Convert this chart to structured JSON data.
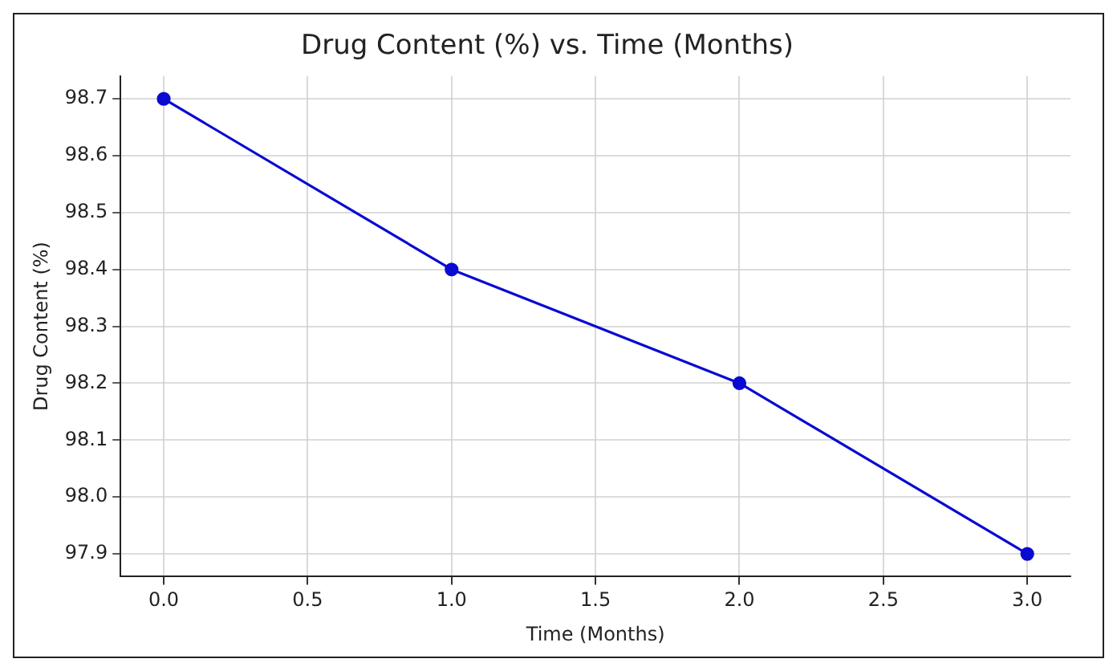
{
  "chart_data": {
    "type": "line",
    "title": "Drug Content (%) vs. Time (Months)",
    "xlabel": "Time (Months)",
    "ylabel": "Drug Content (%)",
    "x": [
      0,
      1,
      2,
      3
    ],
    "series": [
      {
        "color": "#0a0ad2",
        "values": [
          98.7,
          98.4,
          98.2,
          97.9
        ]
      }
    ],
    "xlim": [
      -0.15,
      3.15
    ],
    "xticks": [
      {
        "value": 0,
        "label": "0.0"
      },
      {
        "value": 0.5,
        "label": "0.5"
      },
      {
        "value": 1,
        "label": "1.0"
      },
      {
        "value": 1.5,
        "label": "1.5"
      },
      {
        "value": 2,
        "label": "2.0"
      },
      {
        "value": 2.5,
        "label": "2.5"
      },
      {
        "value": 3,
        "label": "3.0"
      }
    ],
    "ylim": [
      97.86,
      98.74
    ],
    "yticks": [
      {
        "value": 97.9,
        "label": "97.9"
      },
      {
        "value": 98,
        "label": "98.0"
      },
      {
        "value": 98.1,
        "label": "98.1"
      },
      {
        "value": 98.2,
        "label": "98.2"
      },
      {
        "value": 98.3,
        "label": "98.3"
      },
      {
        "value": 98.4,
        "label": "98.4"
      },
      {
        "value": 98.5,
        "label": "98.5"
      },
      {
        "value": 98.6,
        "label": "98.6"
      },
      {
        "value": 98.7,
        "label": "98.7"
      }
    ],
    "grid": true,
    "marker": "circle",
    "line_style": "solid",
    "legend": false
  }
}
